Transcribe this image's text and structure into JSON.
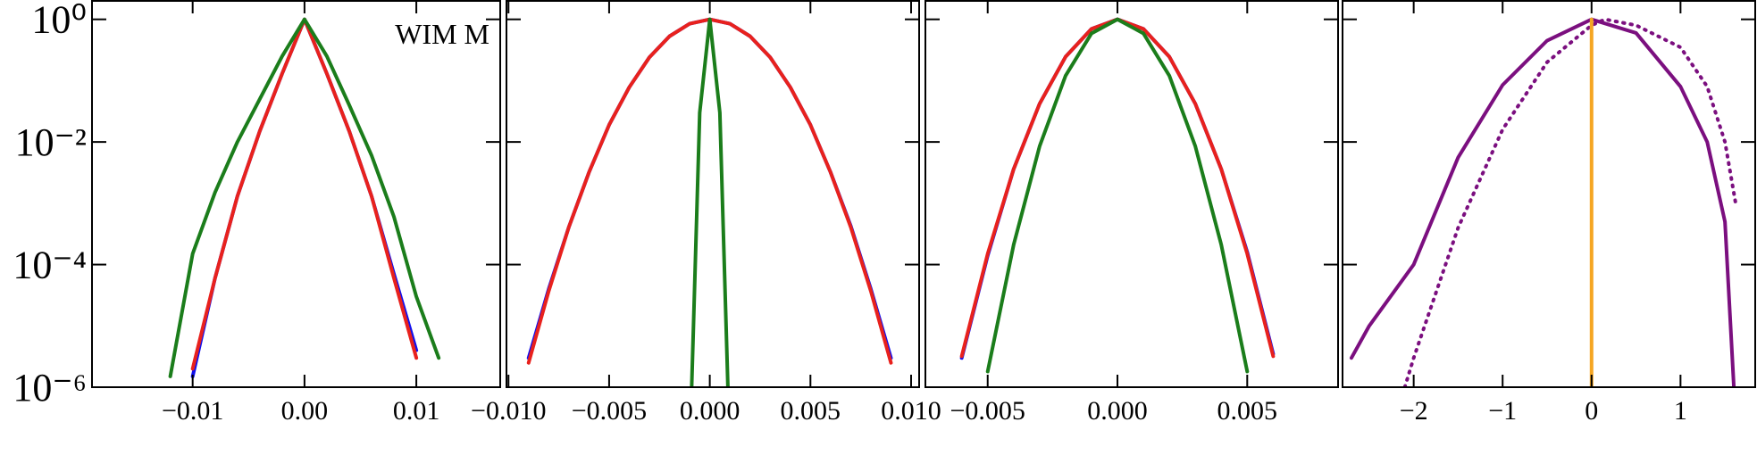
{
  "chart_data": [
    {
      "type": "line",
      "log_y": true,
      "annotation": "WIM M",
      "xlim": [
        -0.019,
        0.0175
      ],
      "ylim": [
        1e-06,
        2
      ],
      "xticks": [
        {
          "value": -0.01,
          "label": "−0.01"
        },
        {
          "value": 0,
          "label": "0.00"
        },
        {
          "value": 0.01,
          "label": "0.01"
        }
      ],
      "yticks": [
        {
          "value": 1,
          "label": "10⁰"
        },
        {
          "value": 0.01,
          "label": "10⁻²"
        },
        {
          "value": 0.0001,
          "label": "10⁻⁴"
        },
        {
          "value": 1e-06,
          "label": "10⁻⁶"
        }
      ],
      "series": [
        {
          "color": "#1010ee",
          "x": [
            -0.01,
            -0.008,
            -0.006,
            -0.004,
            -0.002,
            0,
            0.002,
            0.004,
            0.006,
            0.008,
            0.01
          ],
          "values": [
            1.5e-06,
            6e-05,
            0.0013,
            0.015,
            0.13,
            1,
            0.13,
            0.015,
            0.0013,
            7e-05,
            4e-06
          ]
        },
        {
          "color": "#e8211d",
          "x": [
            -0.01,
            -0.008,
            -0.006,
            -0.004,
            -0.002,
            0,
            0.002,
            0.004,
            0.006,
            0.008,
            0.01
          ],
          "values": [
            2e-06,
            6e-05,
            0.0013,
            0.015,
            0.13,
            1,
            0.13,
            0.015,
            0.0013,
            6e-05,
            3e-06
          ]
        },
        {
          "color": "#1b7d1b",
          "x": [
            -0.012,
            -0.01,
            -0.008,
            -0.006,
            -0.004,
            -0.002,
            0,
            0.002,
            0.004,
            0.006,
            0.008,
            0.01,
            0.012
          ],
          "values": [
            1.5e-06,
            0.00015,
            0.0015,
            0.01,
            0.05,
            0.25,
            1,
            0.25,
            0.04,
            0.006,
            0.0006,
            3e-05,
            3e-06
          ]
        }
      ]
    },
    {
      "type": "line",
      "log_y": true,
      "xlim": [
        -0.0101,
        0.0104
      ],
      "ylim": [
        1e-06,
        2
      ],
      "xticks": [
        {
          "value": -0.01,
          "label": "−0.010"
        },
        {
          "value": -0.005,
          "label": "−0.005"
        },
        {
          "value": 0,
          "label": "0.000"
        },
        {
          "value": 0.005,
          "label": "0.005"
        },
        {
          "value": 0.01,
          "label": "0.010"
        }
      ],
      "yticks": [
        1,
        0.01,
        0.0001,
        1e-06
      ],
      "series": [
        {
          "color": "#1010ee",
          "x": [
            -0.009,
            -0.008,
            -0.007,
            -0.006,
            -0.005,
            -0.004,
            -0.003,
            -0.002,
            -0.001,
            0,
            0.001,
            0.002,
            0.003,
            0.004,
            0.005,
            0.006,
            0.007,
            0.008,
            0.009
          ],
          "values": [
            3e-06,
            4e-05,
            0.00041,
            0.0032,
            0.019,
            0.078,
            0.24,
            0.53,
            0.85,
            1,
            0.85,
            0.53,
            0.24,
            0.078,
            0.019,
            0.0032,
            0.00043,
            4e-05,
            3e-06
          ]
        },
        {
          "color": "#e8211d",
          "x": [
            -0.009,
            -0.008,
            -0.007,
            -0.006,
            -0.005,
            -0.004,
            -0.003,
            -0.002,
            -0.001,
            0,
            0.001,
            0.002,
            0.003,
            0.004,
            0.005,
            0.006,
            0.007,
            0.008,
            0.009
          ],
          "values": [
            2.5e-06,
            3.7e-05,
            0.00041,
            0.0032,
            0.019,
            0.078,
            0.24,
            0.53,
            0.85,
            1,
            0.85,
            0.53,
            0.24,
            0.078,
            0.019,
            0.0032,
            0.00041,
            3.7e-05,
            2.5e-06
          ]
        },
        {
          "color": "#1b7d1b",
          "x": [
            -0.0009,
            -0.0005,
            0,
            0.0005,
            0.0009
          ],
          "values": [
            1e-06,
            0.03,
            1,
            0.03,
            1e-06
          ]
        }
      ]
    },
    {
      "type": "line",
      "log_y": true,
      "xlim": [
        -0.0074,
        0.0085
      ],
      "ylim": [
        1e-06,
        2
      ],
      "xticks": [
        {
          "value": -0.005,
          "label": "−0.005"
        },
        {
          "value": 0,
          "label": "0.000"
        },
        {
          "value": 0.005,
          "label": "0.005"
        }
      ],
      "yticks": [
        1,
        0.01,
        0.0001,
        1e-06
      ],
      "series": [
        {
          "color": "#1010ee",
          "x": [
            -0.006,
            -0.005,
            -0.004,
            -0.003,
            -0.002,
            -0.001,
            0,
            0.001,
            0.002,
            0.003,
            0.004,
            0.005,
            0.006
          ],
          "values": [
            3e-06,
            0.00014,
            0.0036,
            0.042,
            0.245,
            0.7,
            1,
            0.7,
            0.245,
            0.042,
            0.0036,
            0.00016,
            3.5e-06
          ]
        },
        {
          "color": "#e8211d",
          "x": [
            -0.006,
            -0.005,
            -0.004,
            -0.003,
            -0.002,
            -0.001,
            0,
            0.001,
            0.002,
            0.003,
            0.004,
            0.005,
            0.006
          ],
          "values": [
            3.2e-06,
            0.00015,
            0.0036,
            0.042,
            0.245,
            0.7,
            1,
            0.7,
            0.245,
            0.042,
            0.0036,
            0.00015,
            3.2e-06
          ]
        },
        {
          "color": "#1b7d1b",
          "x": [
            -0.005,
            -0.004,
            -0.003,
            -0.002,
            -0.001,
            0,
            0.001,
            0.002,
            0.003,
            0.004,
            0.005
          ],
          "values": [
            1.8e-06,
            0.00021,
            0.0085,
            0.12,
            0.59,
            1,
            0.59,
            0.12,
            0.0085,
            0.00021,
            1.8e-06
          ]
        }
      ]
    },
    {
      "type": "line",
      "log_y": true,
      "xlim": [
        -2.8,
        1.84
      ],
      "ylim": [
        1e-06,
        2
      ],
      "xticks": [
        {
          "value": -2,
          "label": "−2"
        },
        {
          "value": -1,
          "label": "−1"
        },
        0,
        1
      ],
      "yticks": [
        1,
        0.01,
        0.0001,
        1e-06
      ],
      "series": [
        {
          "color": "#7b0f7f",
          "linestyle": "solid",
          "x": [
            -2.7,
            -2.5,
            -2,
            -1.5,
            -1,
            -0.5,
            0,
            0.5,
            1,
            1.3,
            1.5,
            1.6
          ],
          "values": [
            3e-06,
            1e-05,
            0.0001,
            0.0056,
            0.085,
            0.45,
            1,
            0.6,
            0.08,
            0.01,
            0.0005,
            1e-06
          ]
        },
        {
          "color": "#7b0f7f",
          "linestyle": "dotted",
          "x": [
            -2.1,
            -2,
            -1.5,
            -1,
            -0.5,
            0,
            0.15,
            0.5,
            1,
            1.3,
            1.5,
            1.62
          ],
          "values": [
            1e-06,
            3e-06,
            0.0004,
            0.016,
            0.2,
            0.8,
            1,
            0.8,
            0.35,
            0.08,
            0.01,
            0.001
          ]
        },
        {
          "color": "#f5a623",
          "linestyle": "solid",
          "x": [
            0,
            0
          ],
          "values": [
            1e-06,
            1
          ]
        }
      ]
    }
  ]
}
